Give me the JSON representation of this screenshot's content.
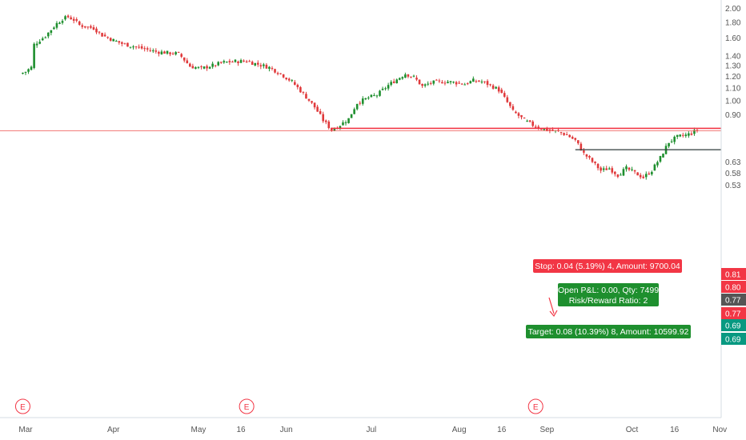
{
  "chart_data": {
    "type": "candlestick",
    "title": "",
    "xlabel": "",
    "ylabel": "",
    "y_scale": "log",
    "ylim": [
      0.5,
      2.05
    ],
    "grid": false,
    "colors": {
      "up": "#26a69a",
      "up_fill": "#1e8f2e",
      "down": "#e0393b",
      "stop_line": "#f23645",
      "target_line": "#089981",
      "stop_zone": "#f7d9dc",
      "target_zone": "#d4ecd7",
      "price_line": "#ef5350",
      "axis_text": "#555555"
    },
    "y_ticks": [
      "2.00",
      "1.80",
      "1.60",
      "1.40",
      "1.30",
      "1.20",
      "1.10",
      "1.00",
      "0.90",
      "0.63",
      "0.58",
      "0.53"
    ],
    "price_labels": [
      {
        "value": "0.81",
        "color": "#f23645"
      },
      {
        "value": "0.80",
        "color": "#f23645"
      },
      {
        "value": "0.77",
        "color": "#555555"
      },
      {
        "value": "0.77",
        "color": "#f23645"
      },
      {
        "value": "0.69",
        "color": "#089981"
      },
      {
        "value": "0.69",
        "color": "#089981"
      }
    ],
    "x_ticks": [
      "Mar",
      "Apr",
      "May",
      "16",
      "Jun",
      "Jul",
      "Aug",
      "16",
      "Sep",
      "Oct",
      "16",
      "Nov"
    ],
    "earnings_markers": [
      "E",
      "E",
      "E"
    ],
    "price_series": [
      [
        "Feb 27",
        1.22
      ],
      [
        "Mar 1",
        1.24
      ],
      [
        "Mar 3",
        1.28
      ],
      [
        "Mar 4",
        1.52
      ],
      [
        "Mar 6",
        1.57
      ],
      [
        "Mar 8",
        1.62
      ],
      [
        "Mar 10",
        1.7
      ],
      [
        "Mar 12",
        1.78
      ],
      [
        "Mar 14",
        1.84
      ],
      [
        "Mar 16",
        1.87
      ],
      [
        "Mar 18",
        1.83
      ],
      [
        "Mar 20",
        1.76
      ],
      [
        "Mar 22",
        1.74
      ],
      [
        "Mar 25",
        1.72
      ],
      [
        "Mar 28",
        1.63
      ],
      [
        "Apr 1",
        1.57
      ],
      [
        "Apr 4",
        1.53
      ],
      [
        "Apr 8",
        1.5
      ],
      [
        "Apr 12",
        1.47
      ],
      [
        "Apr 16",
        1.44
      ],
      [
        "Apr 20",
        1.43
      ],
      [
        "Apr 24",
        1.42
      ],
      [
        "Apr 28",
        1.29
      ],
      [
        "May 2",
        1.27
      ],
      [
        "May 6",
        1.3
      ],
      [
        "May 10",
        1.33
      ],
      [
        "May 14",
        1.34
      ],
      [
        "May 18",
        1.34
      ],
      [
        "May 22",
        1.31
      ],
      [
        "May 26",
        1.28
      ],
      [
        "May 30",
        1.22
      ],
      [
        "Jun 3",
        1.15
      ],
      [
        "Jun 7",
        1.05
      ],
      [
        "Jun 11",
        0.95
      ],
      [
        "Jun 14",
        0.86
      ],
      [
        "Jun 17",
        0.8
      ],
      [
        "Jun 20",
        0.83
      ],
      [
        "Jun 23",
        0.87
      ],
      [
        "Jun 26",
        0.98
      ],
      [
        "Jun 30",
        1.02
      ],
      [
        "Jul 3",
        1.04
      ],
      [
        "Jul 7",
        1.12
      ],
      [
        "Jul 10",
        1.17
      ],
      [
        "Jul 13",
        1.22
      ],
      [
        "Jul 16",
        1.19
      ],
      [
        "Jul 19",
        1.11
      ],
      [
        "Jul 22",
        1.14
      ],
      [
        "Jul 25",
        1.15
      ],
      [
        "Jul 28",
        1.15
      ],
      [
        "Jul 31",
        1.14
      ],
      [
        "Aug 3",
        1.13
      ],
      [
        "Aug 6",
        1.16
      ],
      [
        "Aug 9",
        1.15
      ],
      [
        "Aug 12",
        1.12
      ],
      [
        "Aug 15",
        1.08
      ],
      [
        "Aug 20",
        0.92
      ],
      [
        "Aug 24",
        0.86
      ],
      [
        "Aug 28",
        0.82
      ],
      [
        "Sep 1",
        0.8
      ],
      [
        "Sep 5",
        0.79
      ],
      [
        "Sep 8",
        0.77
      ],
      [
        "Sep 11",
        0.74
      ],
      [
        "Sep 14",
        0.67
      ],
      [
        "Sep 17",
        0.63
      ],
      [
        "Sep 20",
        0.59
      ],
      [
        "Sep 23",
        0.6
      ],
      [
        "Sep 26",
        0.57
      ],
      [
        "Sep 29",
        0.6
      ],
      [
        "Oct 2",
        0.58
      ],
      [
        "Oct 5",
        0.56
      ],
      [
        "Oct 8",
        0.59
      ],
      [
        "Oct 11",
        0.65
      ],
      [
        "Oct 14",
        0.73
      ],
      [
        "Oct 17",
        0.76
      ],
      [
        "Oct 20",
        0.77
      ],
      [
        "Oct 22",
        0.78
      ],
      [
        "Oct 24",
        0.8
      ]
    ],
    "position": {
      "side": "long",
      "entry": 0.77,
      "stop": 0.81,
      "target": 0.69,
      "stop_label": "Stop: 0.04 (5.19%) 4, Amount: 9700.04",
      "target_label": "Target: 0.08 (10.39%) 8, Amount: 10599.92",
      "pnl_label": "Open P&L: 0.00, Qty: 7499",
      "rr_label": "Risk/Reward Ratio: 2"
    }
  }
}
